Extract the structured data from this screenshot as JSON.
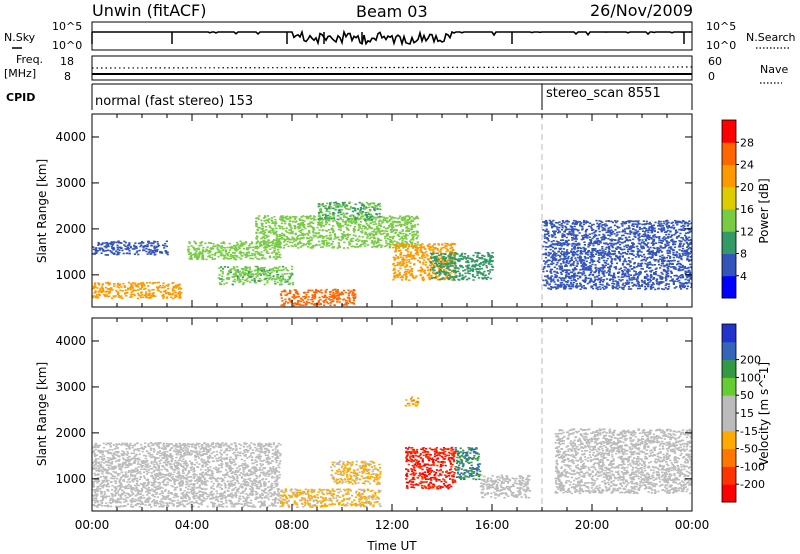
{
  "header": {
    "radar": "Unwin (fitACF)",
    "beam": "Beam 03",
    "date": "26/Nov/2009"
  },
  "strips": {
    "nsky_label": "N.Sky",
    "nsky_ticks": [
      "10^5",
      "10^0"
    ],
    "nsearch_label": "N.Search",
    "nsearch_ticks": [
      "10^5",
      "10^0"
    ],
    "freq_label": "Freq.",
    "freq_unit": "[MHz]",
    "freq_ticks": [
      "18",
      "8"
    ],
    "nave_label": "Nave",
    "nave_ticks": [
      "60",
      "0"
    ],
    "cpid_label": "CPID",
    "cpid_modes": [
      {
        "name": "normal (fast stereo) 153",
        "start_hour": 0
      },
      {
        "name": "stereo_scan 8551",
        "start_hour": 18
      }
    ]
  },
  "colors": {
    "power_scale": [
      "#0000ff",
      "#3355bb",
      "#339966",
      "#77cc44",
      "#ddcc00",
      "#ff9900",
      "#ff6600",
      "#ff0000"
    ],
    "velocity_scale": [
      "#2233cc",
      "#3366bb",
      "#339944",
      "#66cc33",
      "#bbbbbb",
      "#bbbbbb",
      "#ffaa00",
      "#ff7700",
      "#ff3300",
      "#ff0000"
    ]
  },
  "chart_data": [
    {
      "type": "heatmap",
      "panel": "power",
      "ylabel": "Slant Range [km]",
      "yticks": [
        "1000",
        "2000",
        "3000",
        "4000"
      ],
      "ylim": [
        300,
        4500
      ],
      "xlim": [
        0,
        24
      ],
      "colorbar_title": "Power [dB]",
      "colorbar_ticks": [
        "4",
        "8",
        "12",
        "16",
        "20",
        "24",
        "28"
      ],
      "colorbar_range": [
        0,
        32
      ],
      "regions": [
        {
          "x": [
            0.0,
            3.6
          ],
          "y": [
            500,
            850
          ],
          "value": 22
        },
        {
          "x": [
            0.0,
            3.0
          ],
          "y": [
            1450,
            1750
          ],
          "value": 6
        },
        {
          "x": [
            3.8,
            7.5
          ],
          "y": [
            1350,
            1750
          ],
          "value": 14
        },
        {
          "x": [
            6.5,
            13.0
          ],
          "y": [
            1600,
            2300
          ],
          "value": 14
        },
        {
          "x": [
            9.0,
            11.5
          ],
          "y": [
            2200,
            2600
          ],
          "value": 12
        },
        {
          "x": [
            5.0,
            8.0
          ],
          "y": [
            800,
            1200
          ],
          "value": 13
        },
        {
          "x": [
            7.5,
            10.5
          ],
          "y": [
            350,
            700
          ],
          "value": 26
        },
        {
          "x": [
            12.0,
            14.5
          ],
          "y": [
            900,
            1700
          ],
          "value": 22
        },
        {
          "x": [
            13.5,
            16.0
          ],
          "y": [
            900,
            1500
          ],
          "value": 10
        },
        {
          "x": [
            18.0,
            24.0
          ],
          "y": [
            700,
            2200
          ],
          "value": 6
        }
      ],
      "xlabel": "Time UT",
      "xticks": [
        "00:00",
        "04:00",
        "08:00",
        "12:00",
        "16:00",
        "20:00",
        "00:00"
      ]
    },
    {
      "type": "heatmap",
      "panel": "velocity",
      "ylabel": "Slant Range [km]",
      "yticks": [
        "1000",
        "2000",
        "3000",
        "4000"
      ],
      "ylim": [
        300,
        4500
      ],
      "xlim": [
        0,
        24
      ],
      "colorbar_title": "Velocity [m s^-1]",
      "colorbar_ticks": [
        "200",
        "100",
        "50",
        "15",
        "-15",
        "-50",
        "-100",
        "-200"
      ],
      "colorbar_range": [
        -250,
        250
      ],
      "regions": [
        {
          "x": [
            0.0,
            7.5
          ],
          "y": [
            400,
            1800
          ],
          "value": 0
        },
        {
          "x": [
            7.5,
            11.5
          ],
          "y": [
            400,
            800
          ],
          "value": -60
        },
        {
          "x": [
            9.5,
            11.5
          ],
          "y": [
            900,
            1400
          ],
          "value": -60
        },
        {
          "x": [
            12.5,
            14.5
          ],
          "y": [
            800,
            1700
          ],
          "value": -200
        },
        {
          "x": [
            14.5,
            15.5
          ],
          "y": [
            1000,
            1700
          ],
          "value": 150
        },
        {
          "x": [
            15.5,
            17.5
          ],
          "y": [
            600,
            1100
          ],
          "value": 0
        },
        {
          "x": [
            12.5,
            13.0
          ],
          "y": [
            2600,
            2800
          ],
          "value": -100
        },
        {
          "x": [
            18.5,
            24.0
          ],
          "y": [
            700,
            2100
          ],
          "value": 0
        }
      ],
      "xlabel": "Time UT",
      "xticks": [
        "00:00",
        "04:00",
        "08:00",
        "12:00",
        "16:00",
        "20:00",
        "00:00"
      ]
    }
  ]
}
